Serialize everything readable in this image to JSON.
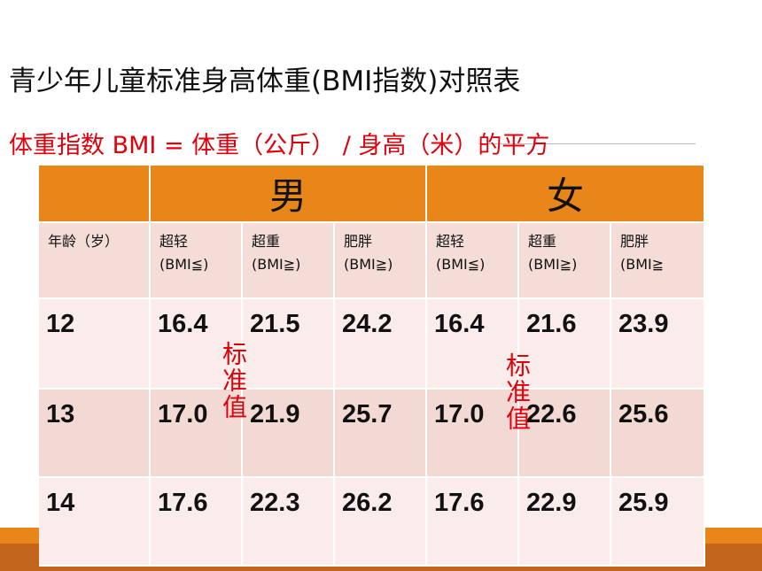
{
  "title": "青少年儿童标准身高体重(BMI指数)对照表",
  "formula": "体重指数 BMI = 体重（公斤） / 身高（米）的平方",
  "table": {
    "groups": [
      "男",
      "女"
    ],
    "columns": [
      {
        "name": "年龄（岁）"
      },
      {
        "name": "超轻",
        "note": "(BMI≦)"
      },
      {
        "name": "超重",
        "note": "(BMI≧)"
      },
      {
        "name": "肥胖",
        "note": "(BMI≧)"
      },
      {
        "name": "超轻",
        "note": "(BMI≦)"
      },
      {
        "name": "超重",
        "note": "(BMI≧)"
      },
      {
        "name": "肥胖",
        "note": "(BMI≧"
      }
    ],
    "rows": [
      [
        "12",
        "16.4",
        "21.5",
        "24.2",
        "16.4",
        "21.6",
        "23.9"
      ],
      [
        "13",
        "17.0",
        "21.9",
        "25.7",
        "17.0",
        "22.6",
        "25.6"
      ],
      [
        "14",
        "17.6",
        "22.3",
        "26.2",
        "17.6",
        "22.9",
        "25.9"
      ]
    ]
  },
  "annotations": [
    "标准值",
    "标准值"
  ]
}
